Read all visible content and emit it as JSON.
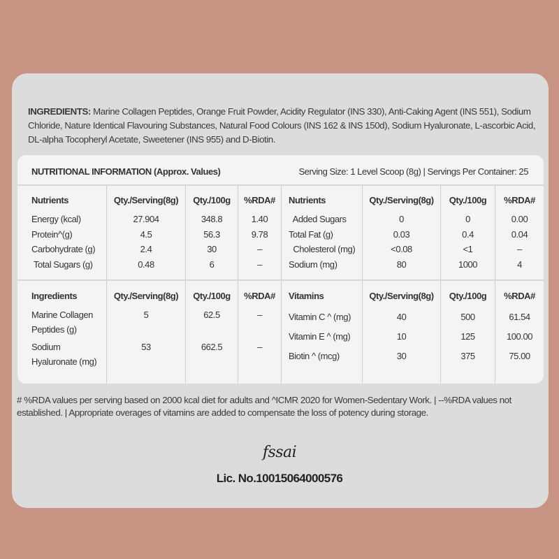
{
  "ingredients": {
    "label": "INGREDIENTS:",
    "text": " Marine Collagen Peptides, Orange Fruit Powder, Acidity Regulator (INS 330), Anti-Caking Agent (INS 551), Sodium Chloride, Nature Identical Flavouring Substances, Natural Food Colours (INS 162 & INS 150d), Sodium Hyaluronate, L-ascorbic Acid, DL-alpha Tocopheryl  Acetate, Sweetener (INS 955) and D-Biotin."
  },
  "nutrition": {
    "title": "NUTRITIONAL INFORMATION (Approx. Values)",
    "serving": "Serving Size: 1 Level Scoop (8g)  |  Servings Per Container: 25",
    "section1": {
      "left": {
        "headers": [
          "Nutrients",
          "Qty./Serving(8g)",
          "Qty./100g",
          "%RDA#"
        ],
        "rows": [
          [
            "Energy (kcal)",
            "27.904",
            "348.8",
            "1.40"
          ],
          [
            "Protein^(g)",
            "4.5",
            "56.3",
            "9.78"
          ],
          [
            "Carbohydrate (g)",
            "2.4",
            "30",
            "–"
          ],
          [
            " Total Sugars (g)",
            "0.48",
            "6",
            "–"
          ]
        ]
      },
      "right": {
        "headers": [
          "Nutrients",
          "Qty./Serving(8g)",
          "Qty./100g",
          "%RDA#"
        ],
        "rows": [
          [
            "  Added Sugars",
            "0",
            "0",
            "0.00"
          ],
          [
            "Total Fat (g)",
            "0.03",
            "0.4",
            "0.04"
          ],
          [
            "  Cholesterol (mg)",
            "<0.08",
            "<1",
            "–"
          ],
          [
            "Sodium (mg)",
            "80",
            "1000",
            "4"
          ]
        ]
      }
    },
    "section2": {
      "left": {
        "headers": [
          "Ingredients",
          "Qty./Serving(8g)",
          "Qty./100g",
          "%RDA#"
        ],
        "rows": [
          [
            "Marine Collagen Peptides (g)",
            "5",
            "62.5",
            "–"
          ],
          [
            "Sodium Hyaluronate (mg)",
            "53",
            "662.5",
            "–"
          ]
        ]
      },
      "right": {
        "headers": [
          "Vitamins",
          "Qty./Serving(8g)",
          "Qty./100g",
          "%RDA#"
        ],
        "rows": [
          [
            "Vitamin C ^ (mg)",
            "40",
            "500",
            "61.54"
          ],
          [
            "Vitamin E ^ (mg)",
            "10",
            "125",
            "100.00"
          ],
          [
            "Biotin ^ (mcg)",
            "30",
            "375",
            "75.00"
          ]
        ]
      }
    }
  },
  "footer": "# %RDA values per serving based on 2000 kcal diet for adults and ^ICMR 2020 for Women-Sedentary Work.  |  --%RDA values not established. |  Appropriate overages of vitamins are added to compensate the loss of potency during storage.",
  "logo": "fssai",
  "license": "Lic. No.10015064000576",
  "colors": {
    "background": "#c99383",
    "card": "#dcdcdc",
    "table": "#f4f4f4"
  }
}
